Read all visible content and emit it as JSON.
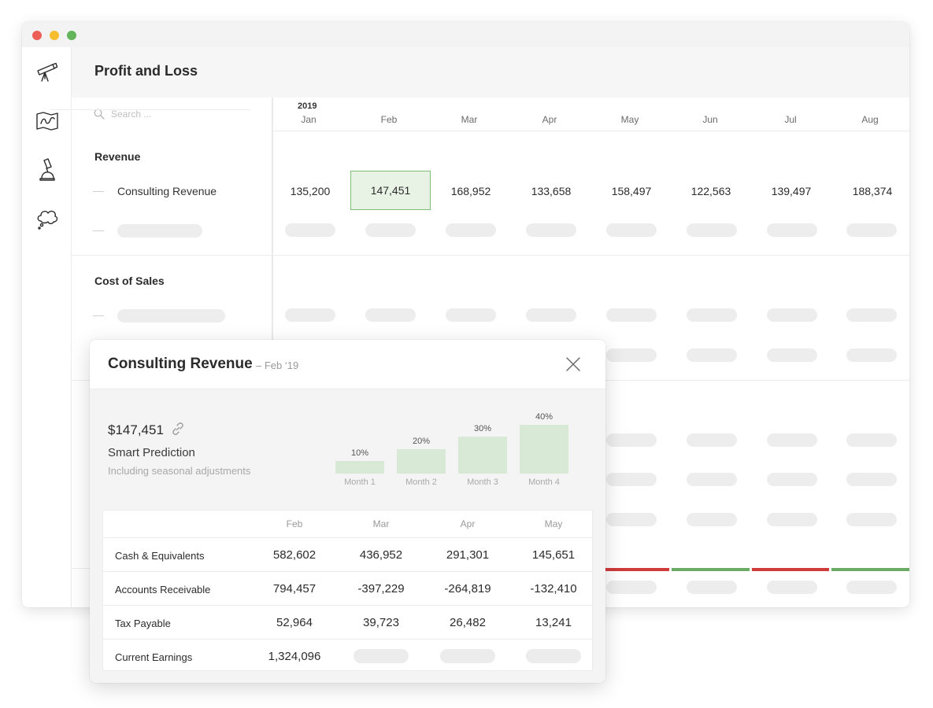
{
  "window": {
    "title": "Profit and Loss",
    "traffic_lights": [
      "#ec5f57",
      "#f6be2f",
      "#62b55a"
    ]
  },
  "sidebar": {
    "icons": [
      "telescope-icon",
      "map-icon",
      "microscope-icon",
      "thought-cloud-icon"
    ]
  },
  "search": {
    "placeholder": "Search ..."
  },
  "grid": {
    "year": "2019",
    "months": [
      "Jan",
      "Feb",
      "Mar",
      "Apr",
      "May",
      "Jun",
      "Jul",
      "Aug"
    ],
    "sections": [
      {
        "title": "Revenue",
        "rows": [
          {
            "label": "Consulting Revenue",
            "values": [
              "135,200",
              "147,451",
              "168,952",
              "133,658",
              "158,497",
              "122,563",
              "139,497",
              "188,374"
            ],
            "selected_month": "Feb"
          }
        ]
      },
      {
        "title": "Cost of Sales",
        "rows": []
      }
    ],
    "status_bar_colors": [
      "#cf3a3a",
      "#6aaa64",
      "#cf3a3a",
      "#6aaa64"
    ]
  },
  "popup": {
    "title": "Consulting Revenue",
    "subtitle": "– Feb ‘19",
    "amount": "$147,451",
    "prediction_label": "Smart Prediction",
    "prediction_sub": "Including seasonal adjustments",
    "chart_data": {
      "type": "bar",
      "categories": [
        "Month 1",
        "Month 2",
        "Month 3",
        "Month 4"
      ],
      "values": [
        10,
        20,
        30,
        40
      ],
      "value_labels": [
        "10%",
        "20%",
        "30%",
        "40%"
      ],
      "bar_color": "#d8ead6"
    },
    "table": {
      "columns": [
        "Feb",
        "Mar",
        "Apr",
        "May"
      ],
      "rows": [
        {
          "label": "Cash & Equivalents",
          "values": [
            "582,602",
            "436,952",
            "291,301",
            "145,651"
          ]
        },
        {
          "label": "Accounts Receivable",
          "values": [
            "794,457",
            "-397,229",
            "-264,819",
            "-132,410"
          ]
        },
        {
          "label": "Tax Payable",
          "values": [
            "52,964",
            "39,723",
            "26,482",
            "13,241"
          ]
        },
        {
          "label": "Current Earnings",
          "values": [
            "1,324,096",
            "",
            "",
            ""
          ]
        }
      ]
    }
  }
}
